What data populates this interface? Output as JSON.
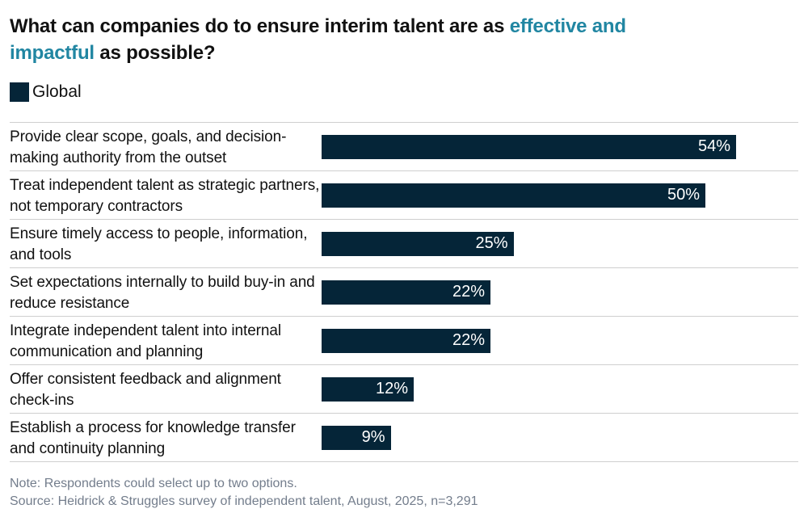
{
  "title": {
    "line1_dark": "What can companies do to ensure interim talent are as ",
    "line1_accent": "effective and",
    "line2_accent": "impactful",
    "line2_dark": " as possible?"
  },
  "legend": {
    "label": "Global",
    "swatch_color": "#052538"
  },
  "chart_data": {
    "type": "bar",
    "orientation": "horizontal",
    "title": "What can companies do to ensure interim talent are as effective and impactful as possible?",
    "title_accent_phrase": "effective and impactful",
    "legend_entries": [
      "Global"
    ],
    "legend_position": "top-left",
    "grid": false,
    "xlim": [
      0,
      62
    ],
    "value_suffix": "%",
    "categories": [
      "Provide clear scope, goals, and decision-making authority from the outset",
      "Treat independent talent as strategic partners, not temporary contractors",
      "Ensure timely access to people, information, and tools",
      "Set expectations internally to build buy-in and reduce resistance",
      "Integrate independent talent into internal communication and planning",
      "Offer consistent feedback and alignment check-ins",
      "Establish a process for knowledge transfer and continuity planning"
    ],
    "series": [
      {
        "name": "Global",
        "values": [
          54,
          50,
          25,
          22,
          22,
          12,
          9
        ]
      }
    ],
    "value_labels": [
      "54%",
      "50%",
      "25%",
      "22%",
      "22%",
      "12%",
      "9%"
    ]
  },
  "footer": {
    "note": "Note: Respondents could select up to two options.",
    "source": "Source: Heidrick & Struggles survey of independent talent, August, 2025, n=3,291"
  },
  "colors": {
    "bar": "#052538",
    "accent_teal": "#2186a2",
    "text": "#111111",
    "separator": "#cfcfcf",
    "footnote": "#737d8c",
    "background": "#ffffff"
  }
}
